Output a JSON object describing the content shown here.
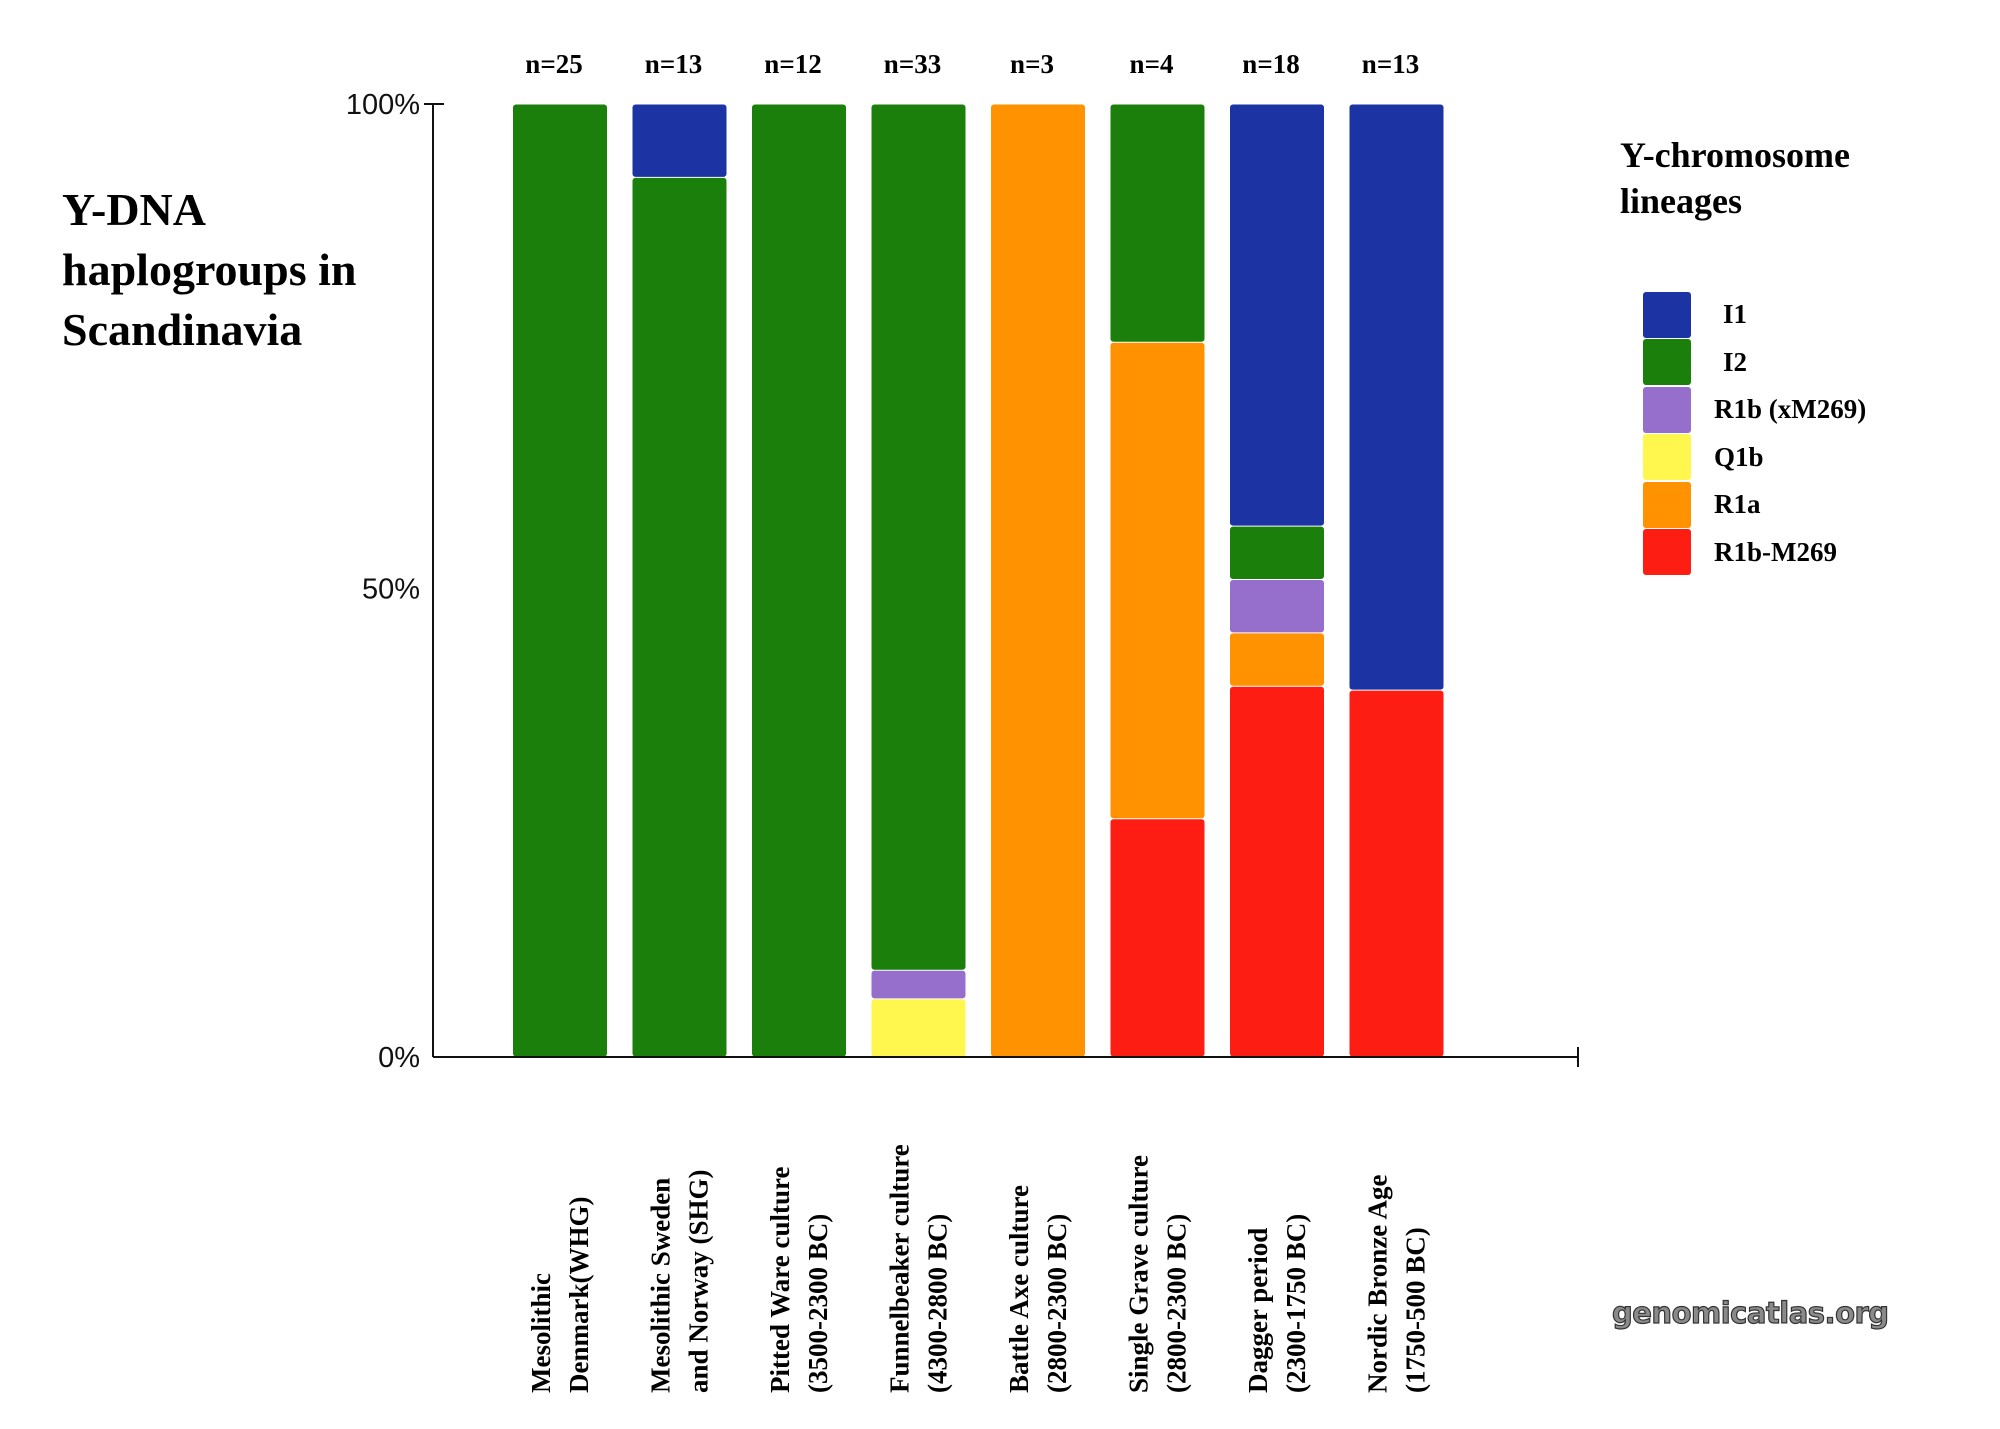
{
  "title": {
    "lines": [
      "Y-DNA",
      "haplogroups in",
      "Scandinavia"
    ]
  },
  "legend": {
    "title_lines": [
      "Y-chromosome",
      "lineages"
    ],
    "items": [
      {
        "key": "I1",
        "label": "I1",
        "color": "#1b33a3"
      },
      {
        "key": "I2",
        "label": "I2",
        "color": "#1b7f0b"
      },
      {
        "key": "R1b_xM269",
        "label": "R1b (xM269)",
        "color": "#956fcb"
      },
      {
        "key": "Q1b",
        "label": "Q1b",
        "color": "#fff64e"
      },
      {
        "key": "R1a",
        "label": "R1a",
        "color": "#fe9200"
      },
      {
        "key": "R1b_M269",
        "label": "R1b-M269",
        "color": "#fe1d13"
      }
    ]
  },
  "watermark": "genomicatlas.org",
  "chart_data": {
    "type": "bar",
    "stacked": true,
    "normalized": true,
    "title": "Y-DNA haplogroups in Scandinavia",
    "xlabel": "",
    "ylabel": "",
    "ylim": [
      0,
      100
    ],
    "yticks": [
      {
        "value": 0,
        "label": "0%"
      },
      {
        "value": 50,
        "label": "50%"
      },
      {
        "value": 100,
        "label": "100%"
      }
    ],
    "grid": false,
    "legend_title": "Y-chromosome lineages",
    "legend_position": "right",
    "categories": [
      {
        "lines": [
          "Mesolithic",
          "Denmark(WHG)"
        ],
        "n_label": "n=25",
        "n": 25
      },
      {
        "lines": [
          "Mesolithic Sweden",
          "and Norway (SHG)"
        ],
        "n_label": "n=13",
        "n": 13
      },
      {
        "lines": [
          "Pitted Ware culture",
          "(3500-2300 BC)"
        ],
        "n_label": "n=12",
        "n": 12
      },
      {
        "lines": [
          "Funnelbeaker culture",
          "(4300-2800 BC)"
        ],
        "n_label": "n=33",
        "n": 33
      },
      {
        "lines": [
          "Battle Axe culture",
          "(2800-2300 BC)"
        ],
        "n_label": "n=3",
        "n": 3
      },
      {
        "lines": [
          "Single Grave culture",
          "(2800-2300 BC)"
        ],
        "n_label": "n=4",
        "n": 4
      },
      {
        "lines": [
          "Dagger period",
          "(2300-1750 BC)"
        ],
        "n_label": "n=18",
        "n": 18
      },
      {
        "lines": [
          "Nordic Bronze Age",
          "(1750-500 BC)"
        ],
        "n_label": "n=13",
        "n": 13
      }
    ],
    "stack_order_bottom_to_top": [
      "R1b_M269",
      "R1a",
      "Q1b",
      "R1b_xM269",
      "I2",
      "I1"
    ],
    "series": [
      {
        "key": "I1",
        "name": "I1",
        "values": [
          0,
          7.7,
          0,
          0,
          0,
          0,
          44.4,
          61.5
        ]
      },
      {
        "key": "I2",
        "name": "I2",
        "values": [
          100,
          92.3,
          100,
          90.9,
          0,
          25,
          5.6,
          0
        ]
      },
      {
        "key": "R1b_xM269",
        "name": "R1b (xM269)",
        "values": [
          0,
          0,
          0,
          3.0,
          0,
          0,
          5.6,
          0
        ]
      },
      {
        "key": "Q1b",
        "name": "Q1b",
        "values": [
          0,
          0,
          0,
          6.1,
          0,
          0,
          0,
          0
        ]
      },
      {
        "key": "R1a",
        "name": "R1a",
        "values": [
          0,
          0,
          0,
          0,
          100,
          50,
          5.6,
          0
        ]
      },
      {
        "key": "R1b_M269",
        "name": "R1b-M269",
        "values": [
          0,
          0,
          0,
          0,
          0,
          25,
          38.9,
          38.5
        ]
      }
    ]
  }
}
